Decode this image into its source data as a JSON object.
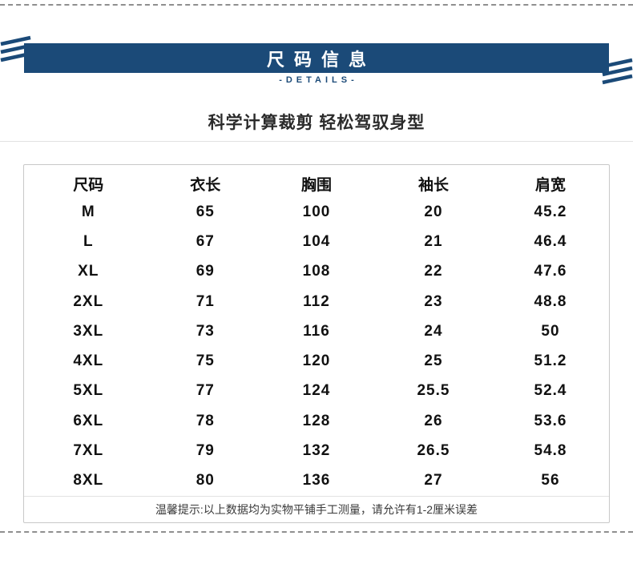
{
  "banner": {
    "title": "尺码信息",
    "details_label": "-DETAILS-"
  },
  "heading": "科学计算裁剪 轻松驾驭身型",
  "table": {
    "columns": [
      "尺码",
      "衣长",
      "胸围",
      "袖长",
      "肩宽"
    ],
    "rows": [
      [
        "M",
        "65",
        "100",
        "20",
        "45.2"
      ],
      [
        "L",
        "67",
        "104",
        "21",
        "46.4"
      ],
      [
        "XL",
        "69",
        "108",
        "22",
        "47.6"
      ],
      [
        "2XL",
        "71",
        "112",
        "23",
        "48.8"
      ],
      [
        "3XL",
        "73",
        "116",
        "24",
        "50"
      ],
      [
        "4XL",
        "75",
        "120",
        "25",
        "51.2"
      ],
      [
        "5XL",
        "77",
        "124",
        "25.5",
        "52.4"
      ],
      [
        "6XL",
        "78",
        "128",
        "26",
        "53.6"
      ],
      [
        "7XL",
        "79",
        "132",
        "26.5",
        "54.8"
      ],
      [
        "8XL",
        "80",
        "136",
        "27",
        "56"
      ]
    ]
  },
  "tip": "温馨提示:以上数据均为实物平铺手工测量，请允许有1-2厘米误差",
  "colors": {
    "banner_bg": "#1b4a78",
    "accent_blue": "#1b4a78",
    "dashed_gray": "#8f8f8f"
  }
}
